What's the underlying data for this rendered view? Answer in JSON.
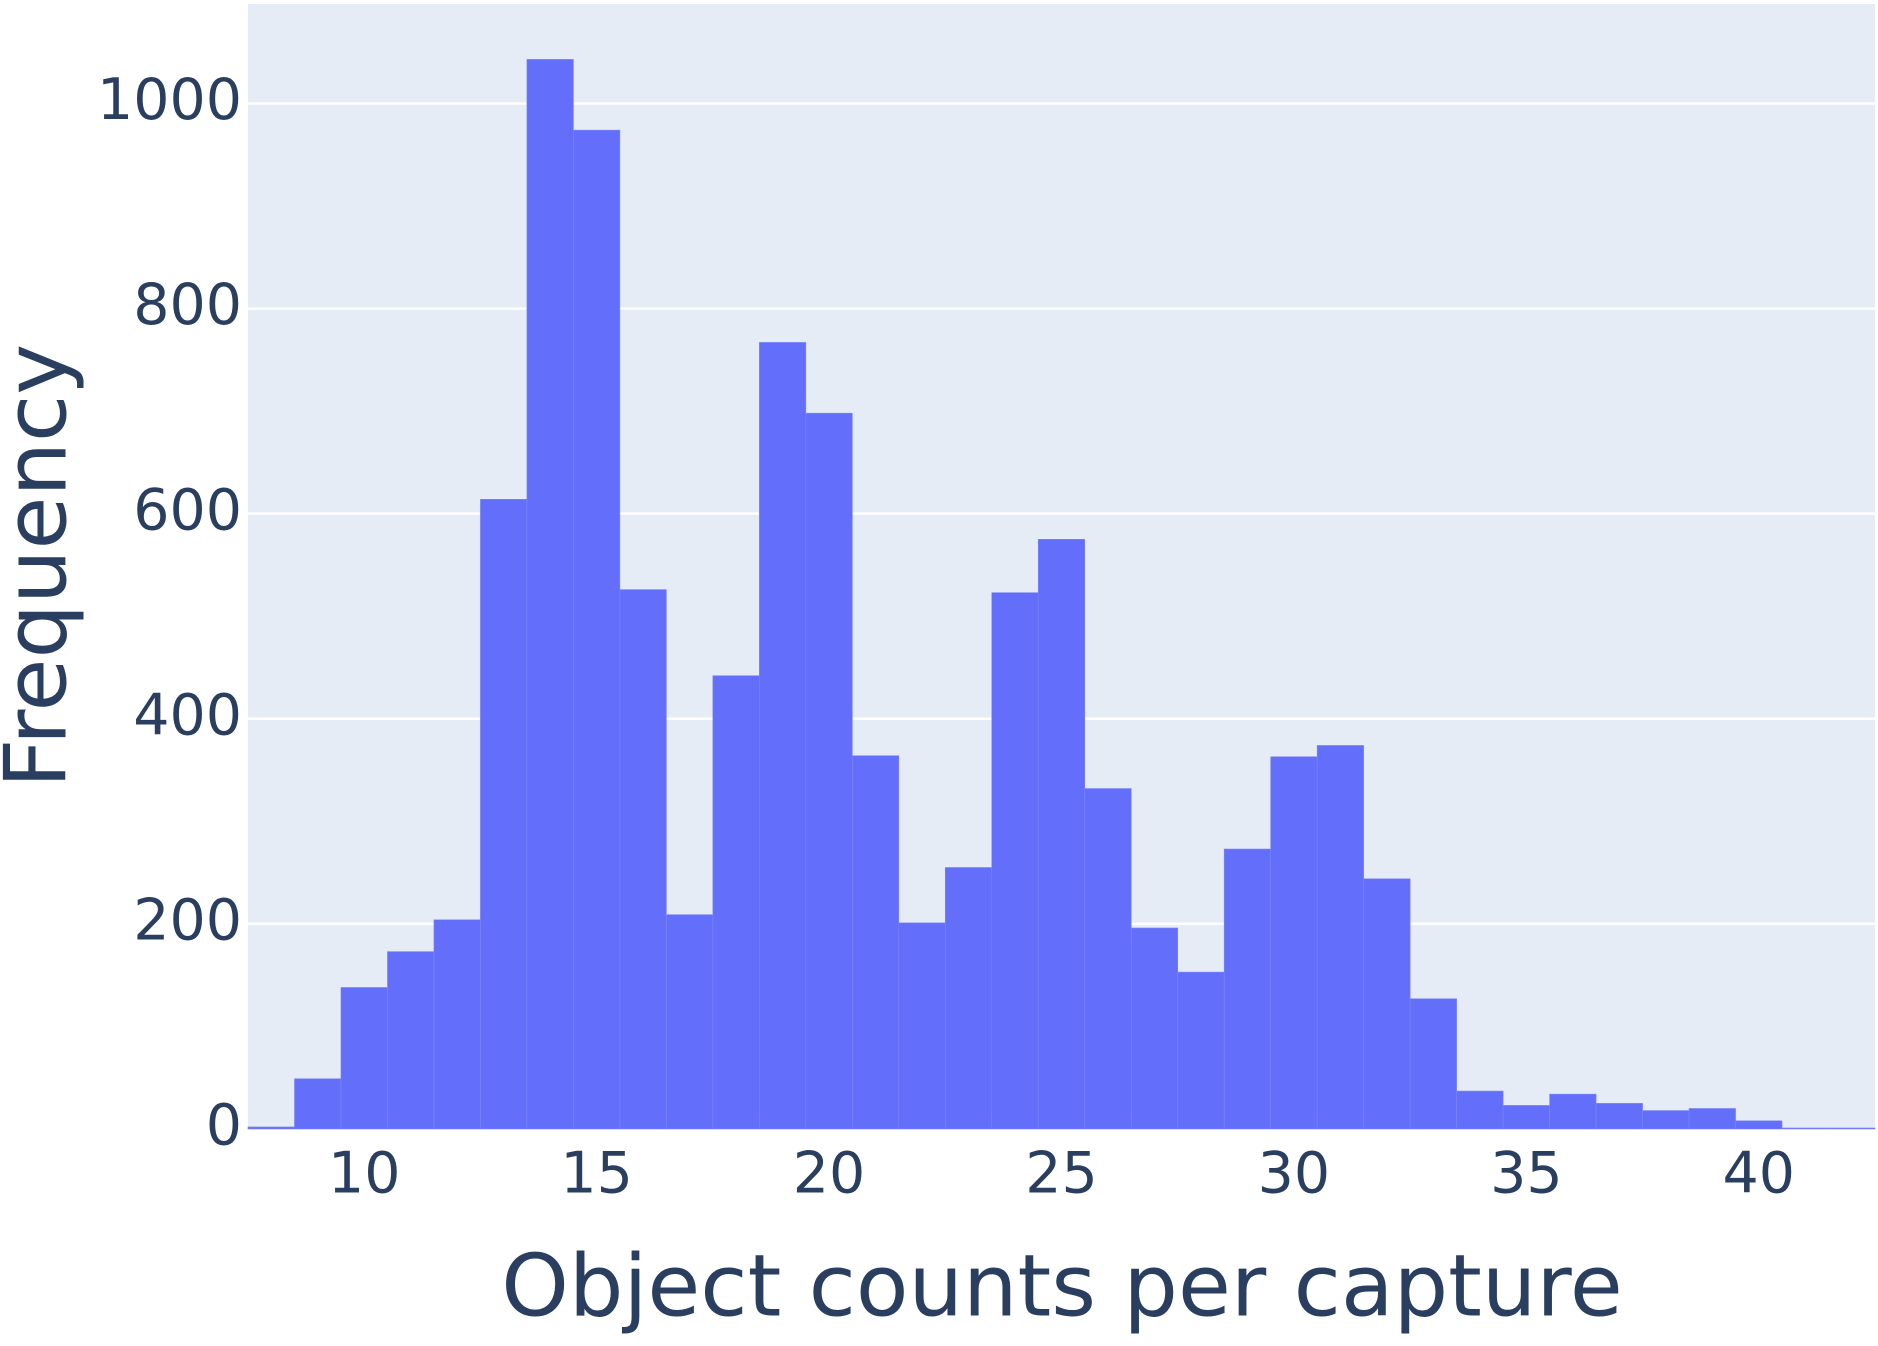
{
  "chart_data": {
    "type": "histogram",
    "x_label": "Object counts per capture",
    "y_label": "Frequency",
    "bins": [
      7.5,
      8.5,
      9.5,
      10.5,
      11.5,
      12.5,
      13.5,
      14.5,
      15.5,
      16.5,
      17.5,
      18.5,
      19.5,
      20.5,
      21.5,
      22.5,
      23.5,
      24.5,
      25.5,
      26.5,
      27.5,
      28.5,
      29.5,
      30.5,
      31.5,
      32.5,
      33.5,
      34.5,
      35.5,
      36.5,
      37.5,
      38.5,
      39.5,
      40.5,
      41.5,
      42.5
    ],
    "values": [
      2,
      49,
      138,
      173,
      204,
      614,
      1043,
      974,
      526,
      209,
      442,
      767,
      698,
      364,
      201,
      255,
      523,
      575,
      332,
      196,
      153,
      273,
      363,
      374,
      244,
      127,
      37,
      23,
      34,
      25,
      18,
      20,
      8,
      1,
      1
    ],
    "color": "#636efa",
    "xlim": [
      7.5,
      42.5
    ],
    "xticks": [
      10,
      15,
      20,
      25,
      30,
      35,
      40
    ],
    "ylim": [
      0,
      1097
    ],
    "yticks": [
      0,
      200,
      400,
      600,
      800,
      1000
    ],
    "grid": true
  }
}
